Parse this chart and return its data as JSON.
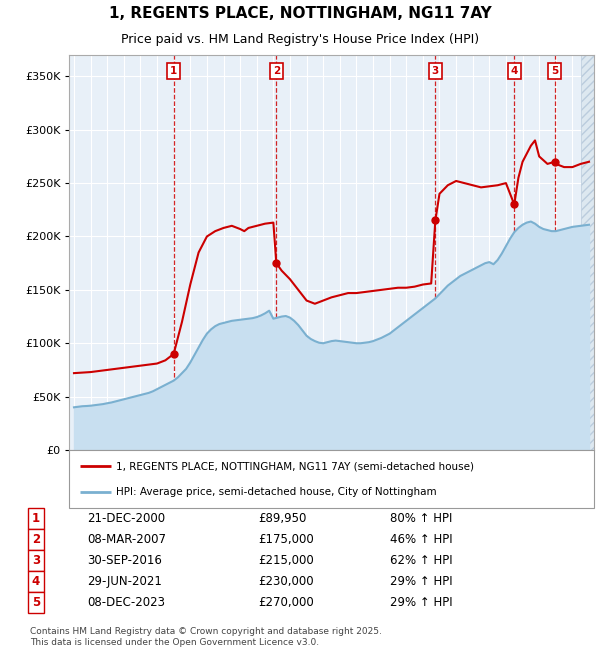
{
  "title": "1, REGENTS PLACE, NOTTINGHAM, NG11 7AY",
  "subtitle": "Price paid vs. HM Land Registry's House Price Index (HPI)",
  "xlim": [
    1994.7,
    2026.3
  ],
  "ylim": [
    0,
    370000
  ],
  "yticks": [
    0,
    50000,
    100000,
    150000,
    200000,
    250000,
    300000,
    350000
  ],
  "sale_color": "#cc0000",
  "hpi_fill_color": "#c8dff0",
  "hpi_line_color": "#7ab0d0",
  "plot_bg": "#e8f0f8",
  "grid_color": "#ffffff",
  "sales": [
    {
      "num": 1,
      "year": 2001.0,
      "price": 89950
    },
    {
      "num": 2,
      "year": 2007.18,
      "price": 175000
    },
    {
      "num": 3,
      "year": 2016.75,
      "price": 215000
    },
    {
      "num": 4,
      "year": 2021.5,
      "price": 230000
    },
    {
      "num": 5,
      "year": 2023.93,
      "price": 270000
    }
  ],
  "table_data": [
    [
      "1",
      "21-DEC-2000",
      "£89,950",
      "80% ↑ HPI"
    ],
    [
      "2",
      "08-MAR-2007",
      "£175,000",
      "46% ↑ HPI"
    ],
    [
      "3",
      "30-SEP-2016",
      "£215,000",
      "62% ↑ HPI"
    ],
    [
      "4",
      "29-JUN-2021",
      "£230,000",
      "29% ↑ HPI"
    ],
    [
      "5",
      "08-DEC-2023",
      "£270,000",
      "29% ↑ HPI"
    ]
  ],
  "legend_entries": [
    "1, REGENTS PLACE, NOTTINGHAM, NG11 7AY (semi-detached house)",
    "HPI: Average price, semi-detached house, City of Nottingham"
  ],
  "footer": "Contains HM Land Registry data © Crown copyright and database right 2025.\nThis data is licensed under the Open Government Licence v3.0.",
  "hpi_data": [
    [
      1995.0,
      40000
    ],
    [
      1995.25,
      40500
    ],
    [
      1995.5,
      41000
    ],
    [
      1995.75,
      41200
    ],
    [
      1996.0,
      41500
    ],
    [
      1996.25,
      42000
    ],
    [
      1996.5,
      42500
    ],
    [
      1996.75,
      43000
    ],
    [
      1997.0,
      43800
    ],
    [
      1997.25,
      44500
    ],
    [
      1997.5,
      45500
    ],
    [
      1997.75,
      46500
    ],
    [
      1998.0,
      47500
    ],
    [
      1998.25,
      48500
    ],
    [
      1998.5,
      49500
    ],
    [
      1998.75,
      50500
    ],
    [
      1999.0,
      51500
    ],
    [
      1999.25,
      52500
    ],
    [
      1999.5,
      53500
    ],
    [
      1999.75,
      55000
    ],
    [
      2000.0,
      57000
    ],
    [
      2000.25,
      59000
    ],
    [
      2000.5,
      61000
    ],
    [
      2000.75,
      63000
    ],
    [
      2001.0,
      65000
    ],
    [
      2001.25,
      68000
    ],
    [
      2001.5,
      72000
    ],
    [
      2001.75,
      76000
    ],
    [
      2002.0,
      82000
    ],
    [
      2002.25,
      89000
    ],
    [
      2002.5,
      96000
    ],
    [
      2002.75,
      103000
    ],
    [
      2003.0,
      109000
    ],
    [
      2003.25,
      113000
    ],
    [
      2003.5,
      116000
    ],
    [
      2003.75,
      118000
    ],
    [
      2004.0,
      119000
    ],
    [
      2004.25,
      120000
    ],
    [
      2004.5,
      121000
    ],
    [
      2004.75,
      121500
    ],
    [
      2005.0,
      122000
    ],
    [
      2005.25,
      122500
    ],
    [
      2005.5,
      123000
    ],
    [
      2005.75,
      123500
    ],
    [
      2006.0,
      124500
    ],
    [
      2006.25,
      126000
    ],
    [
      2006.5,
      128000
    ],
    [
      2006.75,
      130500
    ],
    [
      2007.0,
      123000
    ],
    [
      2007.25,
      124000
    ],
    [
      2007.5,
      125000
    ],
    [
      2007.75,
      125500
    ],
    [
      2008.0,
      124000
    ],
    [
      2008.25,
      121000
    ],
    [
      2008.5,
      117000
    ],
    [
      2008.75,
      112000
    ],
    [
      2009.0,
      107000
    ],
    [
      2009.25,
      104000
    ],
    [
      2009.5,
      102000
    ],
    [
      2009.75,
      100500
    ],
    [
      2010.0,
      100000
    ],
    [
      2010.25,
      101000
    ],
    [
      2010.5,
      102000
    ],
    [
      2010.75,
      102500
    ],
    [
      2011.0,
      102000
    ],
    [
      2011.25,
      101500
    ],
    [
      2011.5,
      101000
    ],
    [
      2011.75,
      100500
    ],
    [
      2012.0,
      100000
    ],
    [
      2012.25,
      100000
    ],
    [
      2012.5,
      100500
    ],
    [
      2012.75,
      101000
    ],
    [
      2013.0,
      102000
    ],
    [
      2013.25,
      103500
    ],
    [
      2013.5,
      105000
    ],
    [
      2013.75,
      107000
    ],
    [
      2014.0,
      109000
    ],
    [
      2014.25,
      112000
    ],
    [
      2014.5,
      115000
    ],
    [
      2014.75,
      118000
    ],
    [
      2015.0,
      121000
    ],
    [
      2015.25,
      124000
    ],
    [
      2015.5,
      127000
    ],
    [
      2015.75,
      130000
    ],
    [
      2016.0,
      133000
    ],
    [
      2016.25,
      136000
    ],
    [
      2016.5,
      139000
    ],
    [
      2016.75,
      142000
    ],
    [
      2017.0,
      146000
    ],
    [
      2017.25,
      150000
    ],
    [
      2017.5,
      154000
    ],
    [
      2017.75,
      157000
    ],
    [
      2018.0,
      160000
    ],
    [
      2018.25,
      163000
    ],
    [
      2018.5,
      165000
    ],
    [
      2018.75,
      167000
    ],
    [
      2019.0,
      169000
    ],
    [
      2019.25,
      171000
    ],
    [
      2019.5,
      173000
    ],
    [
      2019.75,
      175000
    ],
    [
      2020.0,
      176000
    ],
    [
      2020.25,
      174000
    ],
    [
      2020.5,
      178000
    ],
    [
      2020.75,
      184000
    ],
    [
      2021.0,
      191000
    ],
    [
      2021.25,
      198000
    ],
    [
      2021.5,
      204000
    ],
    [
      2021.75,
      208000
    ],
    [
      2022.0,
      211000
    ],
    [
      2022.25,
      213000
    ],
    [
      2022.5,
      214000
    ],
    [
      2022.75,
      212000
    ],
    [
      2023.0,
      209000
    ],
    [
      2023.25,
      207000
    ],
    [
      2023.5,
      206000
    ],
    [
      2023.75,
      205000
    ],
    [
      2024.0,
      205000
    ],
    [
      2024.25,
      206000
    ],
    [
      2024.5,
      207000
    ],
    [
      2024.75,
      208000
    ],
    [
      2025.0,
      209000
    ],
    [
      2025.5,
      210000
    ],
    [
      2026.0,
      211000
    ]
  ],
  "price_line_data": [
    [
      1995.0,
      72000
    ],
    [
      1995.5,
      72500
    ],
    [
      1996.0,
      73000
    ],
    [
      1996.5,
      74000
    ],
    [
      1997.0,
      75000
    ],
    [
      1997.5,
      76000
    ],
    [
      1998.0,
      77000
    ],
    [
      1998.5,
      78000
    ],
    [
      1999.0,
      79000
    ],
    [
      1999.5,
      80000
    ],
    [
      2000.0,
      81000
    ],
    [
      2000.5,
      84000
    ],
    [
      2001.0,
      89950
    ],
    [
      2001.5,
      120000
    ],
    [
      2002.0,
      155000
    ],
    [
      2002.5,
      185000
    ],
    [
      2003.0,
      200000
    ],
    [
      2003.5,
      205000
    ],
    [
      2004.0,
      208000
    ],
    [
      2004.5,
      210000
    ],
    [
      2005.0,
      207000
    ],
    [
      2005.25,
      205000
    ],
    [
      2005.5,
      208000
    ],
    [
      2006.0,
      210000
    ],
    [
      2006.5,
      212000
    ],
    [
      2007.0,
      213000
    ],
    [
      2007.18,
      175000
    ],
    [
      2007.5,
      168000
    ],
    [
      2008.0,
      160000
    ],
    [
      2008.5,
      150000
    ],
    [
      2009.0,
      140000
    ],
    [
      2009.5,
      137000
    ],
    [
      2010.0,
      140000
    ],
    [
      2010.5,
      143000
    ],
    [
      2011.0,
      145000
    ],
    [
      2011.5,
      147000
    ],
    [
      2012.0,
      147000
    ],
    [
      2012.5,
      148000
    ],
    [
      2013.0,
      149000
    ],
    [
      2013.5,
      150000
    ],
    [
      2014.0,
      151000
    ],
    [
      2014.5,
      152000
    ],
    [
      2015.0,
      152000
    ],
    [
      2015.5,
      153000
    ],
    [
      2016.0,
      155000
    ],
    [
      2016.5,
      156000
    ],
    [
      2016.75,
      215000
    ],
    [
      2017.0,
      240000
    ],
    [
      2017.5,
      248000
    ],
    [
      2018.0,
      252000
    ],
    [
      2018.5,
      250000
    ],
    [
      2019.0,
      248000
    ],
    [
      2019.5,
      246000
    ],
    [
      2020.0,
      247000
    ],
    [
      2020.5,
      248000
    ],
    [
      2021.0,
      250000
    ],
    [
      2021.5,
      230000
    ],
    [
      2021.75,
      255000
    ],
    [
      2022.0,
      270000
    ],
    [
      2022.5,
      285000
    ],
    [
      2022.75,
      290000
    ],
    [
      2023.0,
      275000
    ],
    [
      2023.5,
      268000
    ],
    [
      2023.93,
      270000
    ],
    [
      2024.0,
      268000
    ],
    [
      2024.5,
      265000
    ],
    [
      2025.0,
      265000
    ],
    [
      2025.5,
      268000
    ],
    [
      2026.0,
      270000
    ]
  ],
  "hatch_region": [
    2025.5,
    2026.3
  ]
}
